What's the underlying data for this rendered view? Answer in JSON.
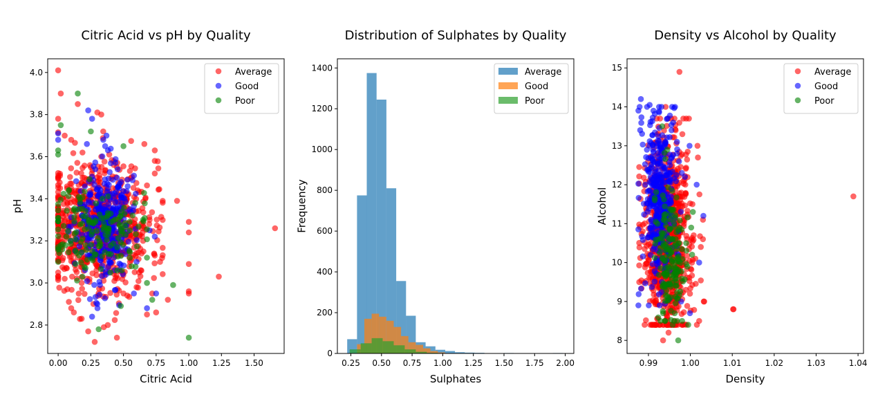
{
  "figure": {
    "background": "#ffffff"
  },
  "chart_data": [
    {
      "type": "scatter",
      "title": "Citric Acid vs pH by Quality",
      "xlabel": "Citric Acid",
      "ylabel": "pH",
      "xlim": [
        -0.08,
        1.73
      ],
      "ylim": [
        2.665,
        4.065
      ],
      "xticks": [
        0.0,
        0.25,
        0.5,
        0.75,
        1.0,
        1.25,
        1.5
      ],
      "xtick_labels": [
        "0.00",
        "0.25",
        "0.50",
        "0.75",
        "1.00",
        "1.25",
        "1.50"
      ],
      "yticks": [
        2.8,
        3.0,
        3.2,
        3.4,
        3.6,
        3.8,
        4.0
      ],
      "ytick_labels": [
        "2.8",
        "3.0",
        "3.2",
        "3.4",
        "3.6",
        "3.8",
        "4.0"
      ],
      "grid": false,
      "legend_position": "top-right",
      "series": [
        {
          "name": "Average",
          "color": "#ff0000",
          "points": [
            [
              0.0,
              4.01
            ],
            [
              0.02,
              3.9
            ],
            [
              0.0,
              3.78
            ],
            [
              0.05,
              3.7
            ],
            [
              0.1,
              3.68
            ],
            [
              0.15,
              3.85
            ],
            [
              0.3,
              3.81
            ],
            [
              0.33,
              3.8
            ],
            [
              0.66,
              3.66
            ],
            [
              0.74,
              3.63
            ],
            [
              0.74,
              3.58
            ],
            [
              0.74,
              3.52
            ],
            [
              0.8,
              3.39
            ],
            [
              0.91,
              3.39
            ],
            [
              1.0,
              3.29
            ],
            [
              1.0,
              3.24
            ],
            [
              1.66,
              3.26
            ],
            [
              1.23,
              3.03
            ],
            [
              1.0,
              3.09
            ],
            [
              1.0,
              2.96
            ],
            [
              1.0,
              2.95
            ],
            [
              0.84,
              2.92
            ],
            [
              0.75,
              2.86
            ],
            [
              0.68,
              2.85
            ],
            [
              0.45,
              2.74
            ],
            [
              0.28,
              2.72
            ],
            [
              0.23,
              2.77
            ],
            [
              0.35,
              2.79
            ],
            [
              0.38,
              2.8
            ],
            [
              0.1,
              2.88
            ],
            [
              0.12,
              2.86
            ],
            [
              0.05,
              3.02
            ],
            [
              0.07,
              2.97
            ],
            [
              0.0,
              3.05
            ],
            [
              0.18,
              2.83
            ],
            [
              0.6,
              2.98
            ],
            [
              0.55,
              3.1
            ],
            [
              0.7,
              3.3
            ],
            [
              0.02,
              3.3
            ],
            [
              0.08,
              3.25
            ],
            [
              0.12,
              3.28
            ],
            [
              0.06,
              3.22
            ],
            [
              0.14,
              3.2
            ],
            [
              0.04,
              3.4
            ],
            [
              0.2,
              3.5
            ],
            [
              0.25,
              3.55
            ],
            [
              0.42,
              3.45
            ],
            [
              0.48,
              3.35
            ],
            [
              0.52,
              3.15
            ],
            [
              0.65,
              3.2
            ],
            [
              0.78,
              3.1
            ],
            [
              0.62,
              3.05
            ],
            [
              0.33,
              3.6
            ],
            [
              0.45,
              3.55
            ],
            [
              0.22,
              3.1
            ],
            [
              0.18,
              3.0
            ],
            [
              0.27,
              2.9
            ],
            [
              0.5,
              2.95
            ],
            [
              0.72,
              2.95
            ]
          ],
          "cluster": {
            "cx": 0.3,
            "sx": 0.2,
            "cy": 3.28,
            "sy": 0.15,
            "xmin": 0.0,
            "xmax": 0.8,
            "ymin": 2.82,
            "ymax": 3.72,
            "n": 780,
            "seed": 11
          }
        },
        {
          "name": "Good",
          "color": "#0000ff",
          "points": [
            [
              0.23,
              3.82
            ],
            [
              0.0,
              3.71
            ],
            [
              0.0,
              3.68
            ],
            [
              0.26,
              3.78
            ],
            [
              0.22,
              3.66
            ],
            [
              0.37,
              3.7
            ],
            [
              0.36,
              3.65
            ],
            [
              0.58,
              3.51
            ],
            [
              0.53,
              3.49
            ],
            [
              0.26,
              2.84
            ],
            [
              0.3,
              2.9
            ],
            [
              0.58,
              2.95
            ],
            [
              0.68,
              2.88
            ],
            [
              0.75,
              2.95
            ],
            [
              0.74,
              3.22
            ],
            [
              0.7,
              3.25
            ],
            [
              0.6,
              3.1
            ],
            [
              0.55,
              3.35
            ],
            [
              0.45,
              3.5
            ],
            [
              0.15,
              3.35
            ]
          ],
          "cluster": {
            "cx": 0.35,
            "sx": 0.1,
            "cy": 3.28,
            "sy": 0.14,
            "xmin": 0.08,
            "xmax": 0.68,
            "ymin": 2.88,
            "ymax": 3.68,
            "n": 320,
            "seed": 23
          }
        },
        {
          "name": "Poor",
          "color": "#008000",
          "points": [
            [
              0.15,
              3.9
            ],
            [
              0.0,
              3.63
            ],
            [
              0.0,
              3.61
            ],
            [
              0.02,
              3.75
            ],
            [
              0.25,
              3.72
            ],
            [
              0.5,
              3.65
            ],
            [
              0.0,
              3.1
            ],
            [
              0.02,
              3.18
            ],
            [
              0.31,
              2.78
            ],
            [
              0.48,
              2.89
            ],
            [
              0.72,
              2.92
            ],
            [
              0.88,
              2.99
            ],
            [
              1.0,
              2.74
            ],
            [
              0.65,
              3.3
            ],
            [
              0.55,
              3.25
            ],
            [
              0.4,
              3.05
            ],
            [
              0.68,
              3.0
            ]
          ],
          "cluster": {
            "cx": 0.28,
            "sx": 0.18,
            "cy": 3.25,
            "sy": 0.1,
            "xmin": 0.0,
            "xmax": 0.68,
            "ymin": 2.95,
            "ymax": 3.6,
            "n": 160,
            "seed": 37
          }
        }
      ]
    },
    {
      "type": "histogram",
      "title": "Distribution of Sulphates by Quality",
      "xlabel": "Sulphates",
      "ylabel": "Frequency",
      "xlim": [
        0.14,
        2.07
      ],
      "ylim": [
        0,
        1445
      ],
      "xticks": [
        0.25,
        0.5,
        0.75,
        1.0,
        1.25,
        1.5,
        1.75,
        2.0
      ],
      "xtick_labels": [
        "0.25",
        "0.50",
        "0.75",
        "1.00",
        "1.25",
        "1.50",
        "1.75",
        "2.00"
      ],
      "yticks": [
        0,
        200,
        400,
        600,
        800,
        1000,
        1200,
        1400
      ],
      "ytick_labels": [
        "0",
        "200",
        "400",
        "600",
        "800",
        "1000",
        "1200",
        "1400"
      ],
      "grid": false,
      "legend_position": "top-right",
      "series": [
        {
          "name": "Average",
          "color": "#1f77b4",
          "bins": [
            [
              0.22,
              0.3,
              70
            ],
            [
              0.3,
              0.38,
              775
            ],
            [
              0.38,
              0.46,
              1375
            ],
            [
              0.46,
              0.54,
              1245
            ],
            [
              0.54,
              0.62,
              810
            ],
            [
              0.62,
              0.7,
              355
            ],
            [
              0.7,
              0.78,
              185
            ],
            [
              0.78,
              0.86,
              55
            ],
            [
              0.86,
              0.94,
              35
            ],
            [
              0.94,
              1.02,
              18
            ],
            [
              1.02,
              1.1,
              12
            ],
            [
              1.1,
              1.18,
              6
            ],
            [
              1.18,
              1.26,
              4
            ],
            [
              1.26,
              1.34,
              3
            ],
            [
              1.5,
              1.58,
              2
            ],
            [
              1.58,
              1.66,
              1
            ],
            [
              1.9,
              1.98,
              2
            ]
          ]
        },
        {
          "name": "Good",
          "color": "#ff7f0e",
          "bins": [
            [
              0.3,
              0.36,
              45
            ],
            [
              0.36,
              0.42,
              170
            ],
            [
              0.42,
              0.48,
              195
            ],
            [
              0.48,
              0.54,
              180
            ],
            [
              0.54,
              0.6,
              160
            ],
            [
              0.6,
              0.66,
              130
            ],
            [
              0.66,
              0.72,
              85
            ],
            [
              0.72,
              0.78,
              55
            ],
            [
              0.78,
              0.84,
              42
            ],
            [
              0.84,
              0.9,
              25
            ],
            [
              0.9,
              0.96,
              12
            ],
            [
              0.96,
              1.02,
              5
            ]
          ]
        },
        {
          "name": "Poor",
          "color": "#2ca02c",
          "bins": [
            [
              0.24,
              0.33,
              20
            ],
            [
              0.33,
              0.42,
              50
            ],
            [
              0.42,
              0.51,
              75
            ],
            [
              0.51,
              0.6,
              60
            ],
            [
              0.6,
              0.69,
              40
            ],
            [
              0.69,
              0.78,
              20
            ],
            [
              0.78,
              0.87,
              8
            ],
            [
              0.87,
              0.96,
              3
            ]
          ]
        }
      ]
    },
    {
      "type": "scatter",
      "title": "Density vs Alcohol by Quality",
      "xlabel": "Density",
      "ylabel": "Alcohol",
      "xlim": [
        0.9849,
        1.0413
      ],
      "ylim": [
        7.665,
        15.235
      ],
      "xticks": [
        0.99,
        1.0,
        1.01,
        1.02,
        1.03,
        1.04
      ],
      "xtick_labels": [
        "0.99",
        "1.00",
        "1.01",
        "1.02",
        "1.03",
        "1.04"
      ],
      "yticks": [
        8,
        9,
        10,
        11,
        12,
        13,
        14,
        15
      ],
      "ytick_labels": [
        "8",
        "9",
        "10",
        "11",
        "12",
        "13",
        "14",
        "15"
      ],
      "grid": false,
      "legend_position": "top-right",
      "series": [
        {
          "name": "Average",
          "color": "#ff0000",
          "points": [
            [
              0.9974,
              14.9
            ],
            [
              1.0389,
              11.7
            ],
            [
              1.0103,
              8.8
            ],
            [
              1.0102,
              8.8
            ],
            [
              0.9941,
              14.0
            ],
            [
              0.9965,
              13.4
            ],
            [
              0.9981,
              13.3
            ],
            [
              1.0017,
              13.0
            ],
            [
              1.0018,
              12.7
            ],
            [
              1.003,
              11.1
            ],
            [
              1.0025,
              10.4
            ],
            [
              1.003,
              10.6
            ],
            [
              1.0032,
              9.0
            ],
            [
              1.0033,
              9.0
            ],
            [
              1.0021,
              8.5
            ],
            [
              0.9935,
              8.0
            ],
            [
              0.9948,
              8.2
            ],
            [
              0.9962,
              8.5
            ],
            [
              0.9988,
              12.0
            ],
            [
              1.0005,
              11.5
            ],
            [
              1.0008,
              10.7
            ],
            [
              1.0012,
              10.1
            ],
            [
              0.9945,
              8.6
            ],
            [
              0.9999,
              9.2
            ]
          ],
          "cluster": {
            "cx": 0.9945,
            "sx": 0.0028,
            "cy": 10.6,
            "sy": 1.3,
            "xmin": 0.9878,
            "xmax": 1.0025,
            "ymin": 8.4,
            "ymax": 13.7,
            "n": 900,
            "seed": 53
          }
        },
        {
          "name": "Good",
          "color": "#0000ff",
          "points": [
            [
              0.9882,
              14.2
            ],
            [
              0.9879,
              14.0
            ],
            [
              0.9903,
              14.05
            ],
            [
              0.9912,
              13.9
            ],
            [
              0.9959,
              13.6
            ],
            [
              0.9955,
              13.4
            ],
            [
              0.9968,
              13.1
            ],
            [
              0.9998,
              13.0
            ],
            [
              0.9968,
              12.8
            ],
            [
              0.9973,
              12.6
            ],
            [
              0.9987,
              12.2
            ],
            [
              1.0015,
              12.0
            ],
            [
              1.0031,
              11.2
            ],
            [
              1.0021,
              10.0
            ],
            [
              0.9999,
              8.7
            ],
            [
              0.9978,
              9.0
            ],
            [
              0.9972,
              10.8
            ]
          ],
          "cluster": {
            "cx": 0.9925,
            "sx": 0.002,
            "cy": 11.6,
            "sy": 1.1,
            "xmin": 0.9876,
            "xmax": 0.9995,
            "ymin": 8.9,
            "ymax": 14.0,
            "n": 380,
            "seed": 71
          }
        },
        {
          "name": "Poor",
          "color": "#008000",
          "points": [
            [
              0.9971,
              8.0
            ],
            [
              0.9933,
              13.5
            ],
            [
              0.9945,
              12.9
            ],
            [
              1.0006,
              11.3
            ],
            [
              1.0002,
              10.9
            ],
            [
              0.9995,
              8.4
            ],
            [
              0.9958,
              8.4
            ],
            [
              0.9935,
              8.7
            ],
            [
              0.999,
              10.5
            ]
          ],
          "cluster": {
            "cx": 0.9955,
            "sx": 0.0018,
            "cy": 10.1,
            "sy": 0.9,
            "xmin": 0.9915,
            "xmax": 1.0005,
            "ymin": 8.5,
            "ymax": 12.9,
            "n": 170,
            "seed": 89
          }
        }
      ]
    }
  ]
}
